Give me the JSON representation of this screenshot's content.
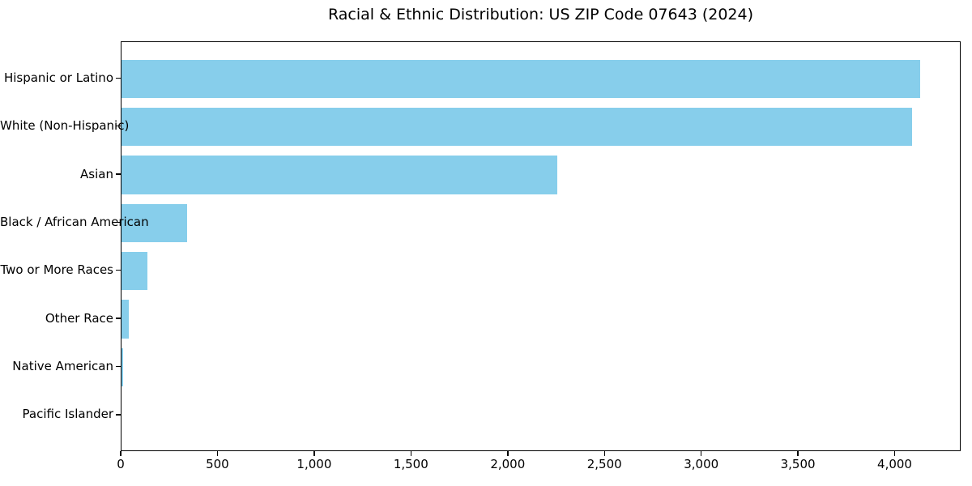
{
  "title": "Racial & Ethnic Distribution: US ZIP Code 07643 (2024)",
  "chart_data": {
    "type": "bar",
    "orientation": "horizontal",
    "title": "Racial & Ethnic Distribution: US ZIP Code 07643 (2024)",
    "categories": [
      "Hispanic or Latino",
      "White (Non-Hispanic)",
      "Asian",
      "Black / African American",
      "Two or More Races",
      "Other Race",
      "Native American",
      "Pacific Islander"
    ],
    "values": [
      4134,
      4092,
      2256,
      339,
      133,
      39,
      8,
      0
    ],
    "xlabel": "",
    "ylabel": "",
    "xlim": [
      0,
      4341
    ],
    "xticks": [
      0,
      500,
      1000,
      1500,
      2000,
      2500,
      3000,
      3500,
      4000
    ],
    "xtick_labels": [
      "0",
      "500",
      "1,000",
      "1,500",
      "2,000",
      "2,500",
      "3,000",
      "3,500",
      "4,000"
    ],
    "bar_color": "#87CEEB",
    "grid": false,
    "legend": null,
    "background_color": "#FFFFFF",
    "axis_color": "#000000",
    "text_color": "#000000"
  }
}
